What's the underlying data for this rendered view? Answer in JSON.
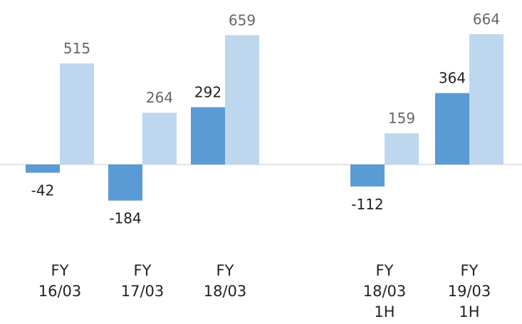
{
  "chart_data": {
    "type": "bar",
    "categories": [
      "FY\n16/03",
      "FY\n17/03",
      "FY\n18/03",
      null,
      "FY\n18/03\n1H",
      "FY\n19/03\n1H"
    ],
    "series": [
      {
        "color": "#5b9bd5",
        "label_color": "#222222",
        "values": [
          -42,
          -184,
          292,
          null,
          -112,
          364
        ]
      },
      {
        "color": "#bdd7ee",
        "label_color": "#666666",
        "values": [
          515,
          264,
          659,
          null,
          159,
          664
        ]
      }
    ]
  }
}
